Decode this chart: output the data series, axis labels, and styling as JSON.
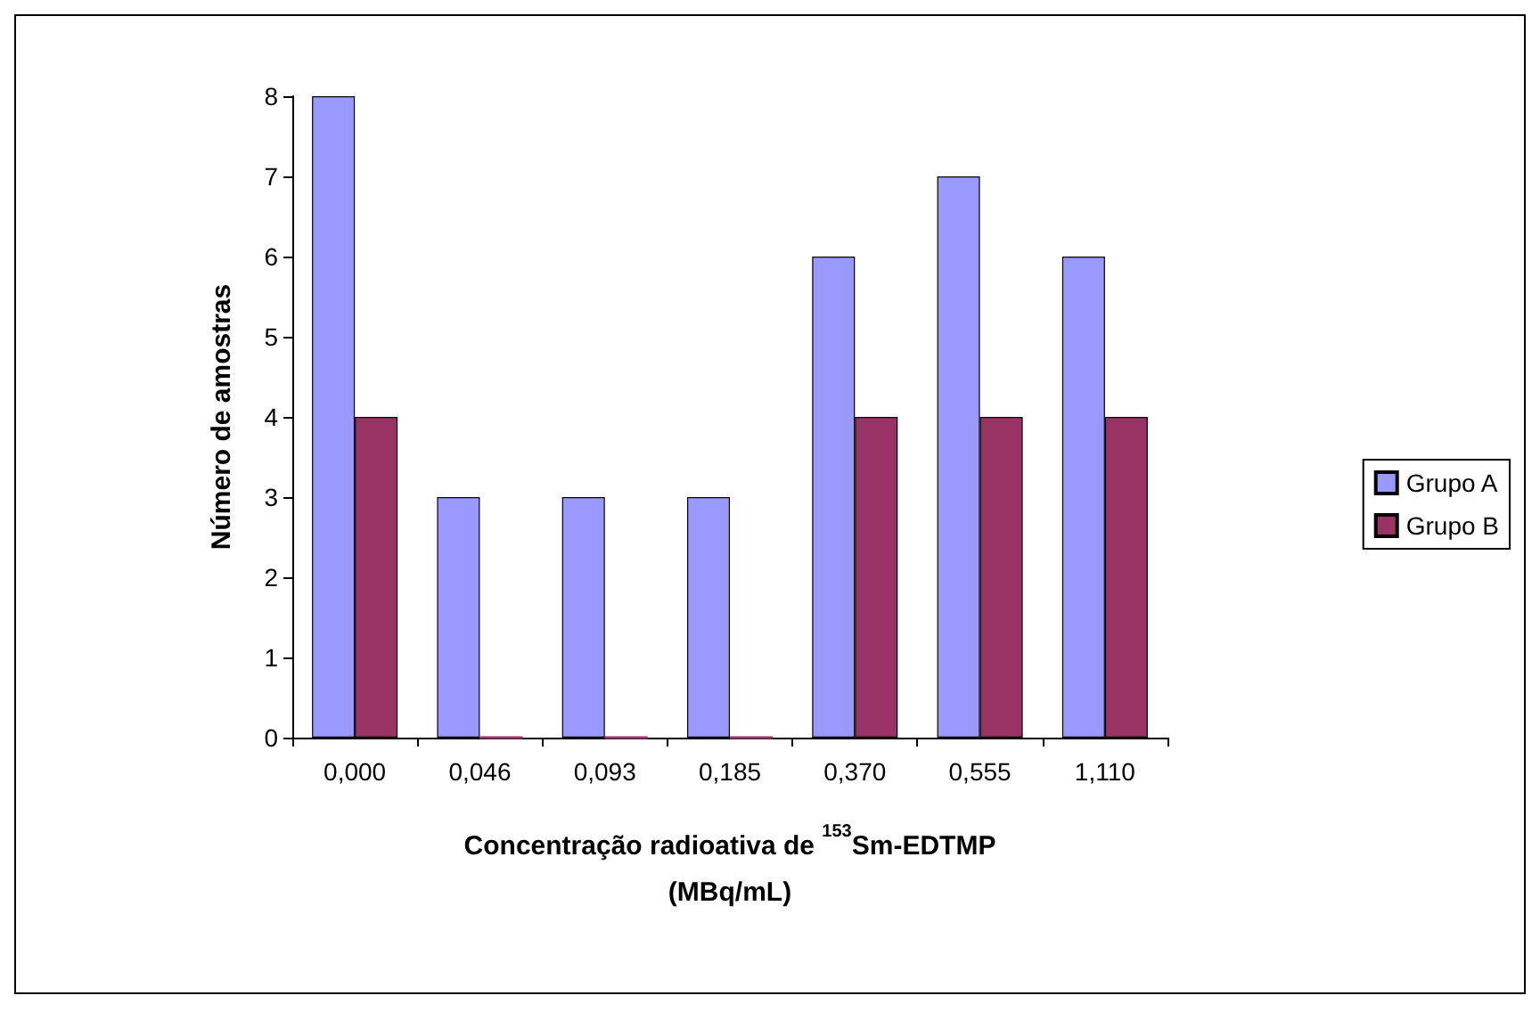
{
  "chart_data": {
    "type": "bar",
    "xlabel": "Concentração radioativa de $^{153}$Sm-EDTMP\n(MBq/mL)",
    "ylabel": "Número de amostras",
    "categories": [
      "0,000",
      "0,046",
      "0,093",
      "0,185",
      "0,370",
      "0,555",
      "1,110"
    ],
    "series": [
      {
        "name": "Grupo A",
        "color": "#9999ff",
        "values": [
          8,
          3,
          3,
          3,
          6,
          7,
          6
        ]
      },
      {
        "name": "Grupo B",
        "color": "#993366",
        "values": [
          4,
          0,
          0,
          0,
          4,
          4,
          4
        ]
      }
    ],
    "ylim": [
      0,
      8
    ],
    "yticks": [
      0,
      1,
      2,
      3,
      4,
      5,
      6,
      7,
      8
    ],
    "grid": false,
    "legend": "right"
  }
}
